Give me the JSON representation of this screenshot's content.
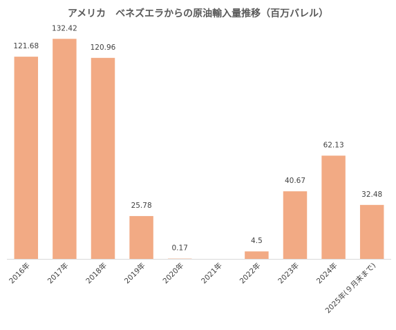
{
  "chart_data": {
    "type": "bar",
    "title": "アメリカ　ベネズエラからの原油輸入量推移（百万バレル）",
    "xlabel": "",
    "ylabel": "",
    "categories": [
      "2016年",
      "2017年",
      "2018年",
      "2019年",
      "2020年",
      "2021年",
      "2022年",
      "2023年",
      "2024年",
      "2025年(９月末まで)"
    ],
    "values": [
      121.68,
      132.42,
      120.96,
      25.78,
      0.17,
      0,
      4.5,
      40.67,
      62.13,
      32.48
    ],
    "data_labels": [
      "121.68",
      "132.42",
      "120.96",
      "25.78",
      "0.17",
      "",
      "4.5",
      "40.67",
      "62.13",
      "32.48"
    ],
    "ylim": [
      0,
      140
    ],
    "grid": false,
    "legend": "none",
    "bar_color": "#f2aa84",
    "axis_color": "#d9d9d9",
    "label_color": "#404040"
  }
}
